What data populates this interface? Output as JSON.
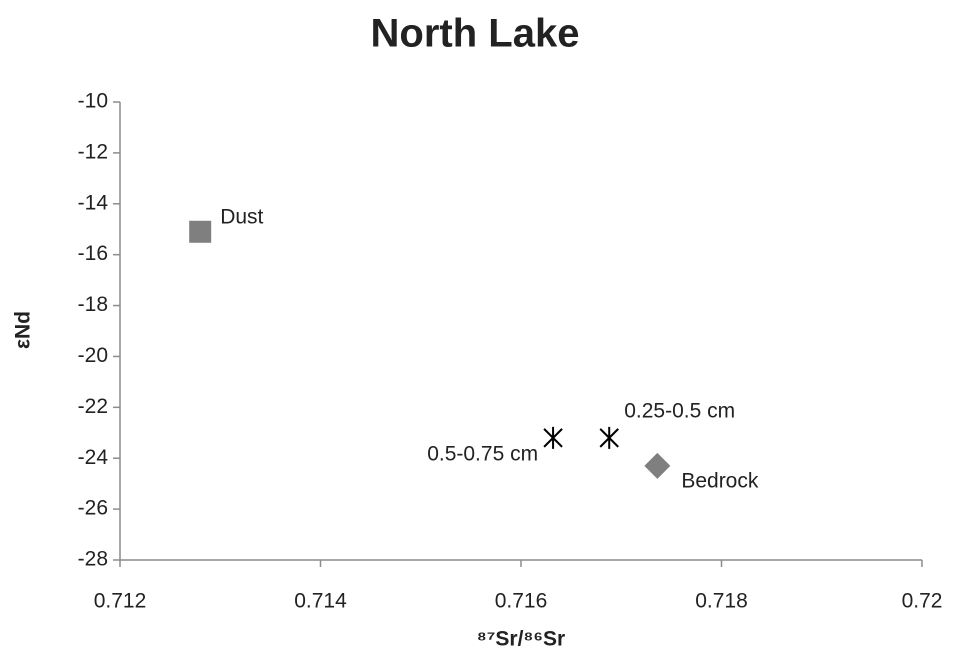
{
  "chart_data": {
    "type": "scatter",
    "title": "North Lake",
    "x_label": "⁸⁷Sr/⁸⁶Sr",
    "y_label": "εNd",
    "series": [
      {
        "name": "Dust",
        "color": "#7f7f7f",
        "marker": "square",
        "x": [
          0.7128
        ],
        "values": [
          -15.1
        ]
      },
      {
        "name": "0.5-0.75 cm",
        "color": "#000000",
        "marker": "star",
        "x": [
          0.71632
        ],
        "values": [
          -23.2
        ]
      },
      {
        "name": "0.25-0.5 cm",
        "color": "#000000",
        "marker": "star",
        "x": [
          0.71688
        ],
        "values": [
          -23.2
        ]
      },
      {
        "name": "Bedrock",
        "color": "#7f7f7f",
        "marker": "diamond",
        "x": [
          0.71736
        ],
        "values": [
          -24.3
        ]
      }
    ],
    "xlim": [
      0.712,
      0.72
    ],
    "xticks": [
      0.712,
      0.714,
      0.716,
      0.718,
      0.72
    ],
    "ylim": [
      -28,
      -10
    ],
    "yticks": [
      -10,
      -12,
      -14,
      -16,
      -18,
      -20,
      -22,
      -24,
      -26,
      -28
    ],
    "grid": false
  }
}
